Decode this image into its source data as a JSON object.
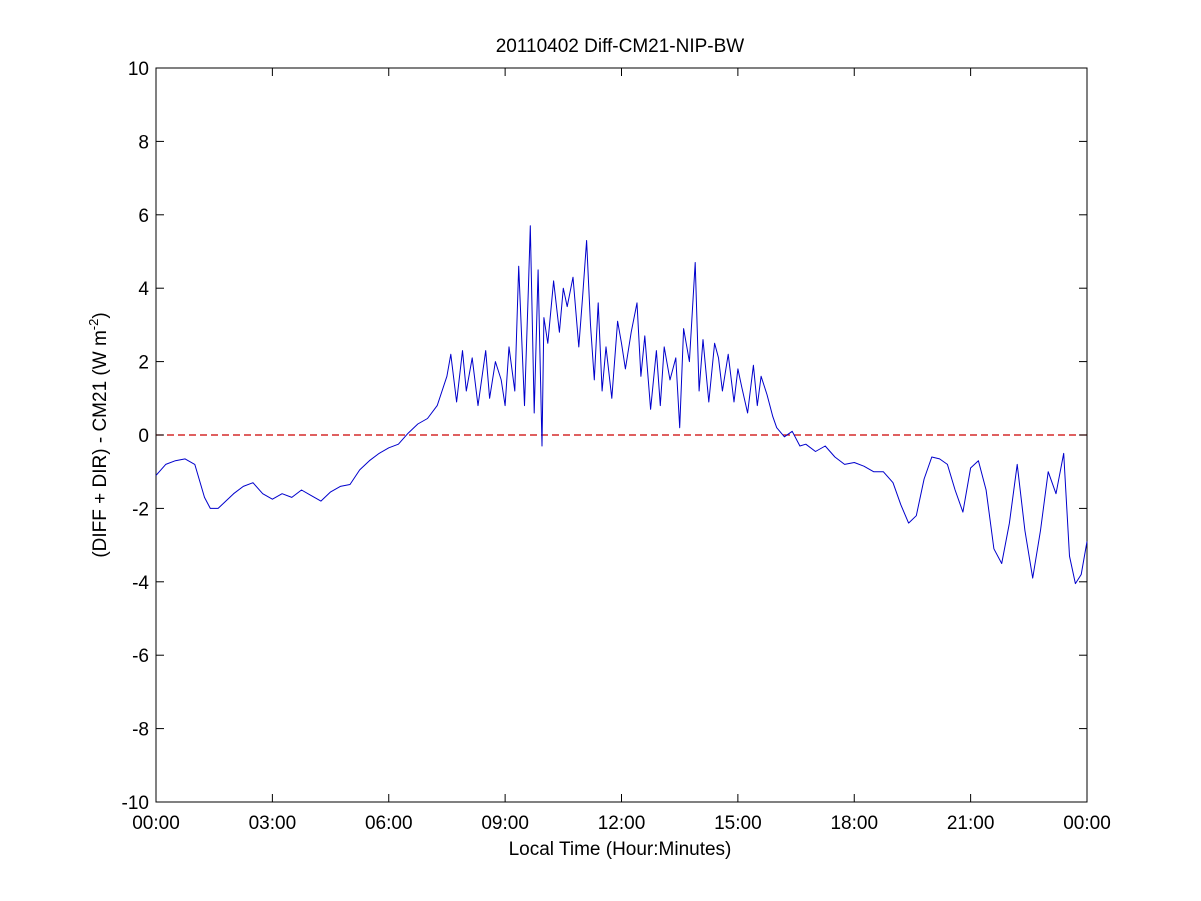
{
  "chart_data": {
    "type": "line",
    "title": "20110402 Diff-CM21-NIP-BW",
    "xlabel": "Local Time (Hour:Minutes)",
    "ylabel": "(DIFF + DIR) - CM21 (W m",
    "ylabel_sup": "-2",
    "ylabel_end": ")",
    "xlim": [
      0,
      24
    ],
    "ylim": [
      -10,
      10
    ],
    "x_ticks": [
      0,
      3,
      6,
      9,
      12,
      15,
      18,
      21,
      24
    ],
    "x_tick_labels": [
      "00:00",
      "03:00",
      "06:00",
      "09:00",
      "12:00",
      "15:00",
      "18:00",
      "21:00",
      "00:00"
    ],
    "y_ticks": [
      -10,
      -8,
      -6,
      -4,
      -2,
      0,
      2,
      4,
      6,
      8,
      10
    ],
    "y_tick_labels": [
      "-10",
      "-8",
      "-6",
      "-4",
      "-2",
      "0",
      "2",
      "4",
      "6",
      "8",
      "10"
    ],
    "grid": false,
    "reference_line": {
      "y": 0,
      "color": "#cc0000",
      "style": "dashed"
    },
    "series": [
      {
        "color": "#0000cc",
        "x": [
          0.0,
          0.25,
          0.5,
          0.75,
          1.0,
          1.25,
          1.4,
          1.6,
          1.8,
          2.0,
          2.25,
          2.5,
          2.75,
          3.0,
          3.25,
          3.5,
          3.75,
          4.0,
          4.25,
          4.5,
          4.75,
          5.0,
          5.25,
          5.5,
          5.75,
          6.0,
          6.25,
          6.5,
          6.75,
          7.0,
          7.25,
          7.5,
          7.6,
          7.75,
          7.9,
          8.0,
          8.15,
          8.3,
          8.5,
          8.6,
          8.75,
          8.9,
          9.0,
          9.1,
          9.25,
          9.35,
          9.5,
          9.6,
          9.65,
          9.75,
          9.85,
          9.95,
          10.0,
          10.1,
          10.25,
          10.4,
          10.5,
          10.6,
          10.75,
          10.9,
          11.0,
          11.1,
          11.2,
          11.3,
          11.4,
          11.5,
          11.6,
          11.75,
          11.9,
          12.0,
          12.1,
          12.25,
          12.4,
          12.5,
          12.6,
          12.75,
          12.9,
          13.0,
          13.1,
          13.25,
          13.4,
          13.5,
          13.6,
          13.75,
          13.9,
          14.0,
          14.1,
          14.25,
          14.4,
          14.5,
          14.6,
          14.75,
          14.9,
          15.0,
          15.1,
          15.25,
          15.4,
          15.5,
          15.6,
          15.75,
          15.9,
          16.0,
          16.2,
          16.4,
          16.6,
          16.75,
          17.0,
          17.25,
          17.5,
          17.75,
          18.0,
          18.25,
          18.5,
          18.75,
          19.0,
          19.2,
          19.4,
          19.6,
          19.8,
          20.0,
          20.2,
          20.4,
          20.6,
          20.8,
          21.0,
          21.2,
          21.4,
          21.6,
          21.8,
          22.0,
          22.2,
          22.4,
          22.6,
          22.8,
          23.0,
          23.2,
          23.4,
          23.55,
          23.7,
          23.85,
          24.0
        ],
        "y": [
          -1.1,
          -0.8,
          -0.7,
          -0.65,
          -0.8,
          -1.7,
          -2.0,
          -2.0,
          -1.8,
          -1.6,
          -1.4,
          -1.3,
          -1.6,
          -1.75,
          -1.6,
          -1.7,
          -1.5,
          -1.65,
          -1.8,
          -1.55,
          -1.4,
          -1.35,
          -0.95,
          -0.7,
          -0.5,
          -0.35,
          -0.25,
          0.05,
          0.3,
          0.45,
          0.8,
          1.6,
          2.2,
          0.9,
          2.3,
          1.2,
          2.1,
          0.8,
          2.3,
          1.0,
          2.0,
          1.5,
          0.8,
          2.4,
          1.2,
          4.6,
          0.8,
          4.0,
          5.7,
          0.6,
          4.5,
          -0.3,
          3.2,
          2.5,
          4.2,
          2.8,
          4.0,
          3.5,
          4.3,
          2.4,
          3.8,
          5.3,
          3.0,
          1.5,
          3.6,
          1.2,
          2.4,
          1.0,
          3.1,
          2.5,
          1.8,
          2.8,
          3.6,
          1.6,
          2.7,
          0.7,
          2.3,
          0.8,
          2.4,
          1.5,
          2.1,
          0.2,
          2.9,
          2.0,
          4.7,
          1.2,
          2.6,
          0.9,
          2.5,
          2.1,
          1.2,
          2.2,
          0.9,
          1.8,
          1.3,
          0.6,
          1.9,
          0.8,
          1.6,
          1.1,
          0.5,
          0.2,
          -0.05,
          0.1,
          -0.3,
          -0.25,
          -0.45,
          -0.3,
          -0.6,
          -0.8,
          -0.75,
          -0.85,
          -1.0,
          -1.0,
          -1.3,
          -1.9,
          -2.4,
          -2.2,
          -1.2,
          -0.6,
          -0.65,
          -0.8,
          -1.5,
          -2.1,
          -0.9,
          -0.7,
          -1.5,
          -3.1,
          -3.5,
          -2.4,
          -0.8,
          -2.6,
          -3.9,
          -2.6,
          -1.0,
          -1.6,
          -0.5,
          -3.3,
          -4.05,
          -3.8,
          -2.9
        ]
      }
    ]
  }
}
